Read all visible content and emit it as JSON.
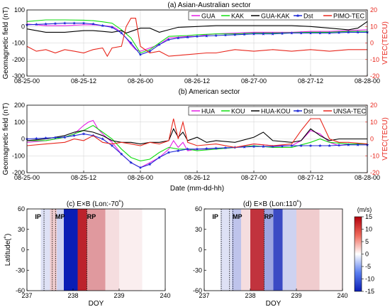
{
  "chart_data": [
    {
      "type": "line",
      "title": "(a) Asian-Australian sector",
      "ylabel": "Geomagnetic field (nT)",
      "y2label": "VTEC(TECU)",
      "xlabel": "",
      "x_tick_labels": [
        "08-25-00",
        "08-25-12",
        "08-26-00",
        "08-26-12",
        "08-27-00",
        "08-27-12",
        "08-28-00"
      ],
      "xlim": [
        0,
        72
      ],
      "ylim": [
        -300,
        100
      ],
      "y_ticks": [
        -300,
        -200,
        -100,
        0,
        100
      ],
      "y2lim": [
        -20,
        20
      ],
      "y2_ticks": [
        -20,
        -10,
        0,
        10,
        20
      ],
      "legend": [
        "GUA",
        "KAK",
        "GUA-KAK",
        "Dst",
        "PIMO-TEC"
      ],
      "series": [
        {
          "name": "GUA",
          "color": "#e41ee4",
          "axis": "left",
          "x": [
            0,
            4,
            8,
            12,
            14,
            16,
            18,
            19,
            20,
            21,
            22,
            23,
            24,
            26,
            28,
            30,
            34,
            36,
            38,
            40,
            44,
            48,
            52,
            56,
            60,
            64,
            68,
            72
          ],
          "y": [
            15,
            5,
            5,
            10,
            10,
            5,
            0,
            -15,
            -40,
            -70,
            -110,
            -140,
            -150,
            -130,
            -110,
            -70,
            -60,
            -60,
            -50,
            -45,
            -40,
            -35,
            -35,
            -35,
            -30,
            -30,
            -25,
            -20
          ]
        },
        {
          "name": "KAK",
          "color": "#10dd10",
          "axis": "left",
          "x": [
            0,
            4,
            8,
            12,
            14,
            16,
            18,
            20,
            22,
            24,
            26,
            28,
            30,
            34,
            36,
            40,
            44,
            48,
            52,
            56,
            60,
            64,
            68,
            72
          ],
          "y": [
            30,
            40,
            40,
            38,
            35,
            28,
            20,
            -20,
            -70,
            -160,
            -140,
            -100,
            -60,
            -55,
            -50,
            -45,
            -45,
            -40,
            -40,
            -38,
            -35,
            -35,
            -30,
            -30
          ]
        },
        {
          "name": "GUA-KAK",
          "color": "#000000",
          "axis": "left",
          "x": [
            0,
            4,
            8,
            12,
            14,
            16,
            18,
            20,
            21,
            22,
            24,
            26,
            28,
            30,
            32,
            36,
            40,
            44,
            48,
            52,
            56,
            60,
            64,
            68,
            70,
            72
          ],
          "y": [
            -15,
            -35,
            -35,
            -25,
            -25,
            -30,
            -35,
            -25,
            -40,
            -30,
            -10,
            -10,
            -35,
            -20,
            -5,
            0,
            5,
            5,
            5,
            5,
            5,
            0,
            -10,
            -20,
            -10,
            30
          ]
        },
        {
          "name": "Dst",
          "color": "#1f2ad6",
          "axis": "left",
          "marker": "star",
          "x": [
            0,
            4,
            8,
            12,
            14,
            16,
            18,
            20,
            22,
            24,
            26,
            28,
            30,
            32,
            36,
            40,
            44,
            48,
            52,
            56,
            60,
            64,
            68,
            72
          ],
          "y": [
            10,
            15,
            20,
            20,
            15,
            5,
            -5,
            -40,
            -100,
            -170,
            -150,
            -110,
            -80,
            -70,
            -60,
            -55,
            -50,
            -45,
            -45,
            -40,
            -40,
            -40,
            -35,
            -35
          ]
        },
        {
          "name": "PIMO-TEC",
          "color": "#e8261c",
          "axis": "right",
          "x": [
            0,
            2,
            4,
            6,
            8,
            10,
            12,
            14,
            16,
            17,
            18,
            20,
            21,
            22,
            23,
            24,
            26,
            28,
            30,
            34,
            38,
            40,
            44,
            48,
            52,
            56,
            60,
            64,
            68,
            72
          ],
          "y": [
            -2,
            -5,
            -4,
            -6,
            -4,
            -5,
            -6,
            -4,
            -3,
            -8,
            -3,
            -2,
            10,
            15,
            15,
            -2,
            -6,
            -5,
            -8,
            -7,
            -6,
            -6,
            -4,
            -5,
            -4,
            -5,
            -4,
            -5,
            -4,
            -4
          ]
        }
      ]
    },
    {
      "type": "line",
      "title": "(b) American sector",
      "ylabel": "Geomagnetic field (nT)",
      "y2label": "VTEC(TECU)",
      "xlabel": "Date (mm-dd-hh)",
      "x_tick_labels": [
        "08-25-00",
        "08-25-12",
        "08-26-00",
        "08-26-12",
        "08-27-00",
        "08-27-12",
        "08-28-00"
      ],
      "xlim": [
        0,
        72
      ],
      "ylim": [
        -200,
        200
      ],
      "y_ticks": [
        -200,
        -100,
        0,
        100,
        200
      ],
      "y2lim": [
        -20,
        20
      ],
      "y2_ticks": [
        -20,
        -10,
        0,
        10,
        20
      ],
      "legend": [
        "HUA",
        "KOU",
        "HUA-KOU",
        "Dst",
        "UNSA-TEC"
      ],
      "series": [
        {
          "name": "HUA",
          "color": "#e41ee4",
          "axis": "left",
          "x": [
            0,
            4,
            8,
            10,
            12,
            13,
            14,
            15,
            16,
            18,
            20,
            22,
            24,
            26,
            28,
            30,
            31,
            32,
            33,
            34,
            36,
            40,
            44,
            48,
            52,
            56,
            58,
            60,
            62,
            64,
            66,
            68,
            72
          ],
          "y": [
            -20,
            -10,
            10,
            30,
            80,
            100,
            110,
            60,
            30,
            -20,
            -90,
            -140,
            -170,
            -140,
            -110,
            -60,
            -10,
            -50,
            -20,
            -70,
            -60,
            -60,
            -50,
            -30,
            -40,
            -40,
            -10,
            50,
            30,
            -20,
            -40,
            -30,
            -30
          ]
        },
        {
          "name": "KOU",
          "color": "#10dd10",
          "axis": "left",
          "x": [
            0,
            4,
            8,
            10,
            12,
            14,
            16,
            18,
            20,
            22,
            24,
            26,
            28,
            30,
            32,
            34,
            36,
            40,
            44,
            48,
            52,
            56,
            60,
            62,
            64,
            68,
            72
          ],
          "y": [
            -10,
            -10,
            10,
            30,
            50,
            80,
            40,
            0,
            -60,
            -110,
            -130,
            -120,
            -80,
            -50,
            -60,
            -60,
            -70,
            -60,
            -50,
            -40,
            -50,
            -50,
            -20,
            0,
            -20,
            -30,
            -30
          ]
        },
        {
          "name": "HUA-KOU",
          "color": "#000000",
          "axis": "left",
          "x": [
            0,
            4,
            8,
            10,
            12,
            14,
            16,
            18,
            20,
            22,
            24,
            26,
            28,
            30,
            31,
            32,
            33,
            34,
            36,
            38,
            40,
            44,
            48,
            50,
            52,
            56,
            58,
            60,
            62,
            64,
            66,
            68,
            72
          ],
          "y": [
            -10,
            0,
            20,
            40,
            50,
            40,
            20,
            -10,
            -20,
            -20,
            -30,
            -20,
            -20,
            -10,
            60,
            10,
            40,
            -10,
            10,
            -20,
            -10,
            -20,
            10,
            40,
            -10,
            -20,
            -10,
            60,
            20,
            -10,
            0,
            0,
            0
          ]
        },
        {
          "name": "Dst",
          "color": "#1f2ad6",
          "axis": "left",
          "marker": "star",
          "x": [
            0,
            4,
            8,
            10,
            12,
            14,
            16,
            18,
            20,
            22,
            24,
            26,
            28,
            30,
            32,
            34,
            36,
            40,
            44,
            48,
            52,
            56,
            60,
            64,
            68,
            72
          ],
          "y": [
            0,
            5,
            10,
            20,
            30,
            20,
            0,
            -40,
            -90,
            -140,
            -170,
            -150,
            -110,
            -80,
            -70,
            -60,
            -60,
            -55,
            -50,
            -45,
            -45,
            -40,
            -40,
            -40,
            -35,
            -35
          ]
        },
        {
          "name": "UNSA-TEC",
          "color": "#e8261c",
          "axis": "right",
          "x": [
            0,
            4,
            8,
            10,
            12,
            14,
            16,
            18,
            20,
            22,
            24,
            26,
            28,
            30,
            31,
            32,
            33,
            34,
            36,
            40,
            44,
            48,
            52,
            56,
            58,
            60,
            62,
            64,
            66,
            68,
            72
          ],
          "y": [
            -4,
            -3,
            -2,
            0,
            -1,
            2,
            -2,
            -3,
            -2,
            -3,
            -4,
            -2,
            -3,
            -1,
            12,
            0,
            10,
            -2,
            -4,
            -3,
            -5,
            -3,
            -4,
            -3,
            5,
            12,
            12,
            0,
            -2,
            -2,
            -3
          ]
        }
      ]
    },
    {
      "type": "heatmap",
      "title": "(c) E×B (Lon:-70˚)",
      "xlabel": "DOY",
      "ylabel": "Latitude(˚)",
      "xlim": [
        237,
        240
      ],
      "x_ticks": [
        237,
        238,
        239,
        240
      ],
      "ylim": [
        -60,
        60
      ],
      "y_ticks": [
        -60,
        -30,
        0,
        30,
        60
      ],
      "phase_labels": [
        "IP",
        "MP",
        "RP"
      ],
      "phase_boundaries": [
        237.37,
        237.55,
        237.62,
        238.3
      ],
      "bands": [
        {
          "x0": 237.0,
          "x1": 237.3,
          "value": 0
        },
        {
          "x0": 237.3,
          "x1": 237.5,
          "value": -2
        },
        {
          "x0": 237.5,
          "x1": 237.65,
          "value": 3
        },
        {
          "x0": 237.65,
          "x1": 237.8,
          "value": -3
        },
        {
          "x0": 237.8,
          "x1": 238.1,
          "value": -15
        },
        {
          "x0": 238.1,
          "x1": 238.3,
          "value": 13
        },
        {
          "x0": 238.3,
          "x1": 238.7,
          "value": 6
        },
        {
          "x0": 238.7,
          "x1": 239.0,
          "value": 2
        },
        {
          "x0": 239.0,
          "x1": 239.5,
          "value": 1
        },
        {
          "x0": 239.5,
          "x1": 240.0,
          "value": 0
        }
      ]
    },
    {
      "type": "heatmap",
      "title": "(d) E×B (Lon:110˚)",
      "xlabel": "DOY",
      "ylabel": "",
      "xlim": [
        237,
        240
      ],
      "x_ticks": [
        237,
        238,
        239,
        240
      ],
      "ylim": [
        -60,
        60
      ],
      "y_ticks": [
        -60,
        -30,
        0,
        30,
        60
      ],
      "phase_labels": [
        "IP",
        "MP",
        "RP"
      ],
      "phase_boundaries": [
        237.37,
        237.55,
        237.62,
        238.3
      ],
      "colorbar_unit": "(m/s)",
      "colorbar_ticks": [
        15,
        10,
        5,
        0,
        -5,
        -10,
        -15
      ],
      "bands": [
        {
          "x0": 237.0,
          "x1": 237.35,
          "value": 0
        },
        {
          "x0": 237.35,
          "x1": 237.6,
          "value": -2
        },
        {
          "x0": 237.6,
          "x1": 237.8,
          "value": -4
        },
        {
          "x0": 237.8,
          "x1": 238.0,
          "value": 2
        },
        {
          "x0": 238.0,
          "x1": 238.3,
          "value": 12
        },
        {
          "x0": 238.3,
          "x1": 238.5,
          "value": -6
        },
        {
          "x0": 238.5,
          "x1": 238.7,
          "value": -12
        },
        {
          "x0": 238.7,
          "x1": 239.0,
          "value": -3
        },
        {
          "x0": 239.0,
          "x1": 239.5,
          "value": 3
        },
        {
          "x0": 239.5,
          "x1": 240.0,
          "value": 1
        }
      ]
    }
  ]
}
